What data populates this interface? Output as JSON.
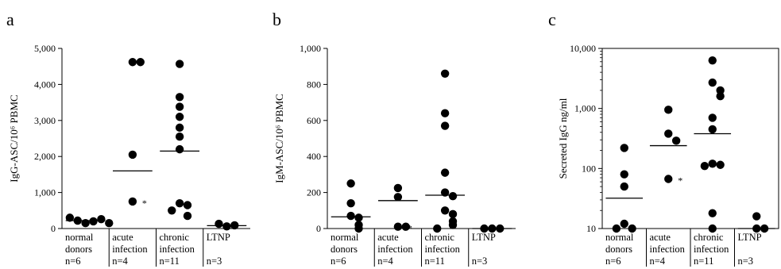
{
  "chart_data": [
    {
      "type": "scatter",
      "panel_label": "a",
      "ylabel": "IgG-ASC/10⁶ PBMC",
      "yscale": "linear",
      "ylim": [
        0,
        5000
      ],
      "yticks": [
        "0",
        "1,000",
        "2,000",
        "3,000",
        "4,000",
        "5,000"
      ],
      "ytick_values": [
        0,
        1000,
        2000,
        3000,
        4000,
        5000
      ],
      "categories": [
        {
          "lines": [
            "normal",
            "donors",
            "n=6"
          ]
        },
        {
          "lines": [
            "acute",
            "infection",
            "n=4"
          ]
        },
        {
          "lines": [
            "chronic",
            "infection",
            "n=11"
          ]
        },
        {
          "lines": [
            "LTNP",
            "",
            "n=3"
          ]
        }
      ],
      "groups": [
        {
          "points": [
            150,
            200,
            220,
            260,
            300,
            150
          ],
          "median": 220
        },
        {
          "points": [
            4620,
            4620,
            2050,
            750
          ],
          "median": 1600,
          "star_on": 750,
          "star": "*"
        },
        {
          "points": [
            4570,
            3650,
            3380,
            3100,
            2800,
            2550,
            2200,
            700,
            650,
            500,
            350
          ],
          "median": 2150
        },
        {
          "points": [
            60,
            90,
            130
          ],
          "median": 80
        }
      ]
    },
    {
      "type": "scatter",
      "panel_label": "b",
      "ylabel": "IgM-ASC/10⁶ PBMC",
      "yscale": "linear",
      "ylim": [
        0,
        1000
      ],
      "yticks": [
        "0",
        "200",
        "400",
        "600",
        "800",
        "1,000"
      ],
      "ytick_values": [
        0,
        200,
        400,
        600,
        800,
        1000
      ],
      "categories": [
        {
          "lines": [
            "normal",
            "donors",
            "n=6"
          ]
        },
        {
          "lines": [
            "acute",
            "infection",
            "n=4"
          ]
        },
        {
          "lines": [
            "chronic",
            "infection",
            "n=11"
          ]
        },
        {
          "lines": [
            "LTNP",
            "",
            "n=3"
          ]
        }
      ],
      "groups": [
        {
          "points": [
            250,
            140,
            70,
            60,
            20,
            0
          ],
          "median": 65
        },
        {
          "points": [
            225,
            175,
            10,
            10
          ],
          "median": 155,
          "star_on": 10,
          "star": "*"
        },
        {
          "points": [
            860,
            640,
            570,
            310,
            200,
            180,
            100,
            80,
            40,
            20,
            0
          ],
          "median": 185
        },
        {
          "points": [
            0,
            0,
            0
          ],
          "median": 0
        }
      ]
    },
    {
      "type": "scatter",
      "panel_label": "c",
      "ylabel": "Secreted IgG ng/ml",
      "yscale": "log",
      "ylim": [
        10,
        10000
      ],
      "yticks": [
        "10",
        "100",
        "1,000",
        "10,000"
      ],
      "ytick_values": [
        10,
        100,
        1000,
        10000
      ],
      "categories": [
        {
          "lines": [
            "normal",
            "donors",
            "n=6"
          ]
        },
        {
          "lines": [
            "acute",
            "infection",
            "n=4"
          ]
        },
        {
          "lines": [
            "chronic",
            "infection",
            "n=11"
          ]
        },
        {
          "lines": [
            "LTNP",
            "",
            "n=3"
          ]
        }
      ],
      "groups": [
        {
          "points": [
            220,
            80,
            50,
            12,
            10,
            10
          ],
          "median": 32
        },
        {
          "points": [
            950,
            380,
            290,
            67
          ],
          "median": 240,
          "star_on": 67,
          "star": "*"
        },
        {
          "points": [
            6300,
            2700,
            2000,
            1600,
            700,
            450,
            120,
            115,
            110,
            18,
            10
          ],
          "median": 380
        },
        {
          "points": [
            16,
            10,
            10
          ],
          "median": 10
        }
      ]
    }
  ]
}
